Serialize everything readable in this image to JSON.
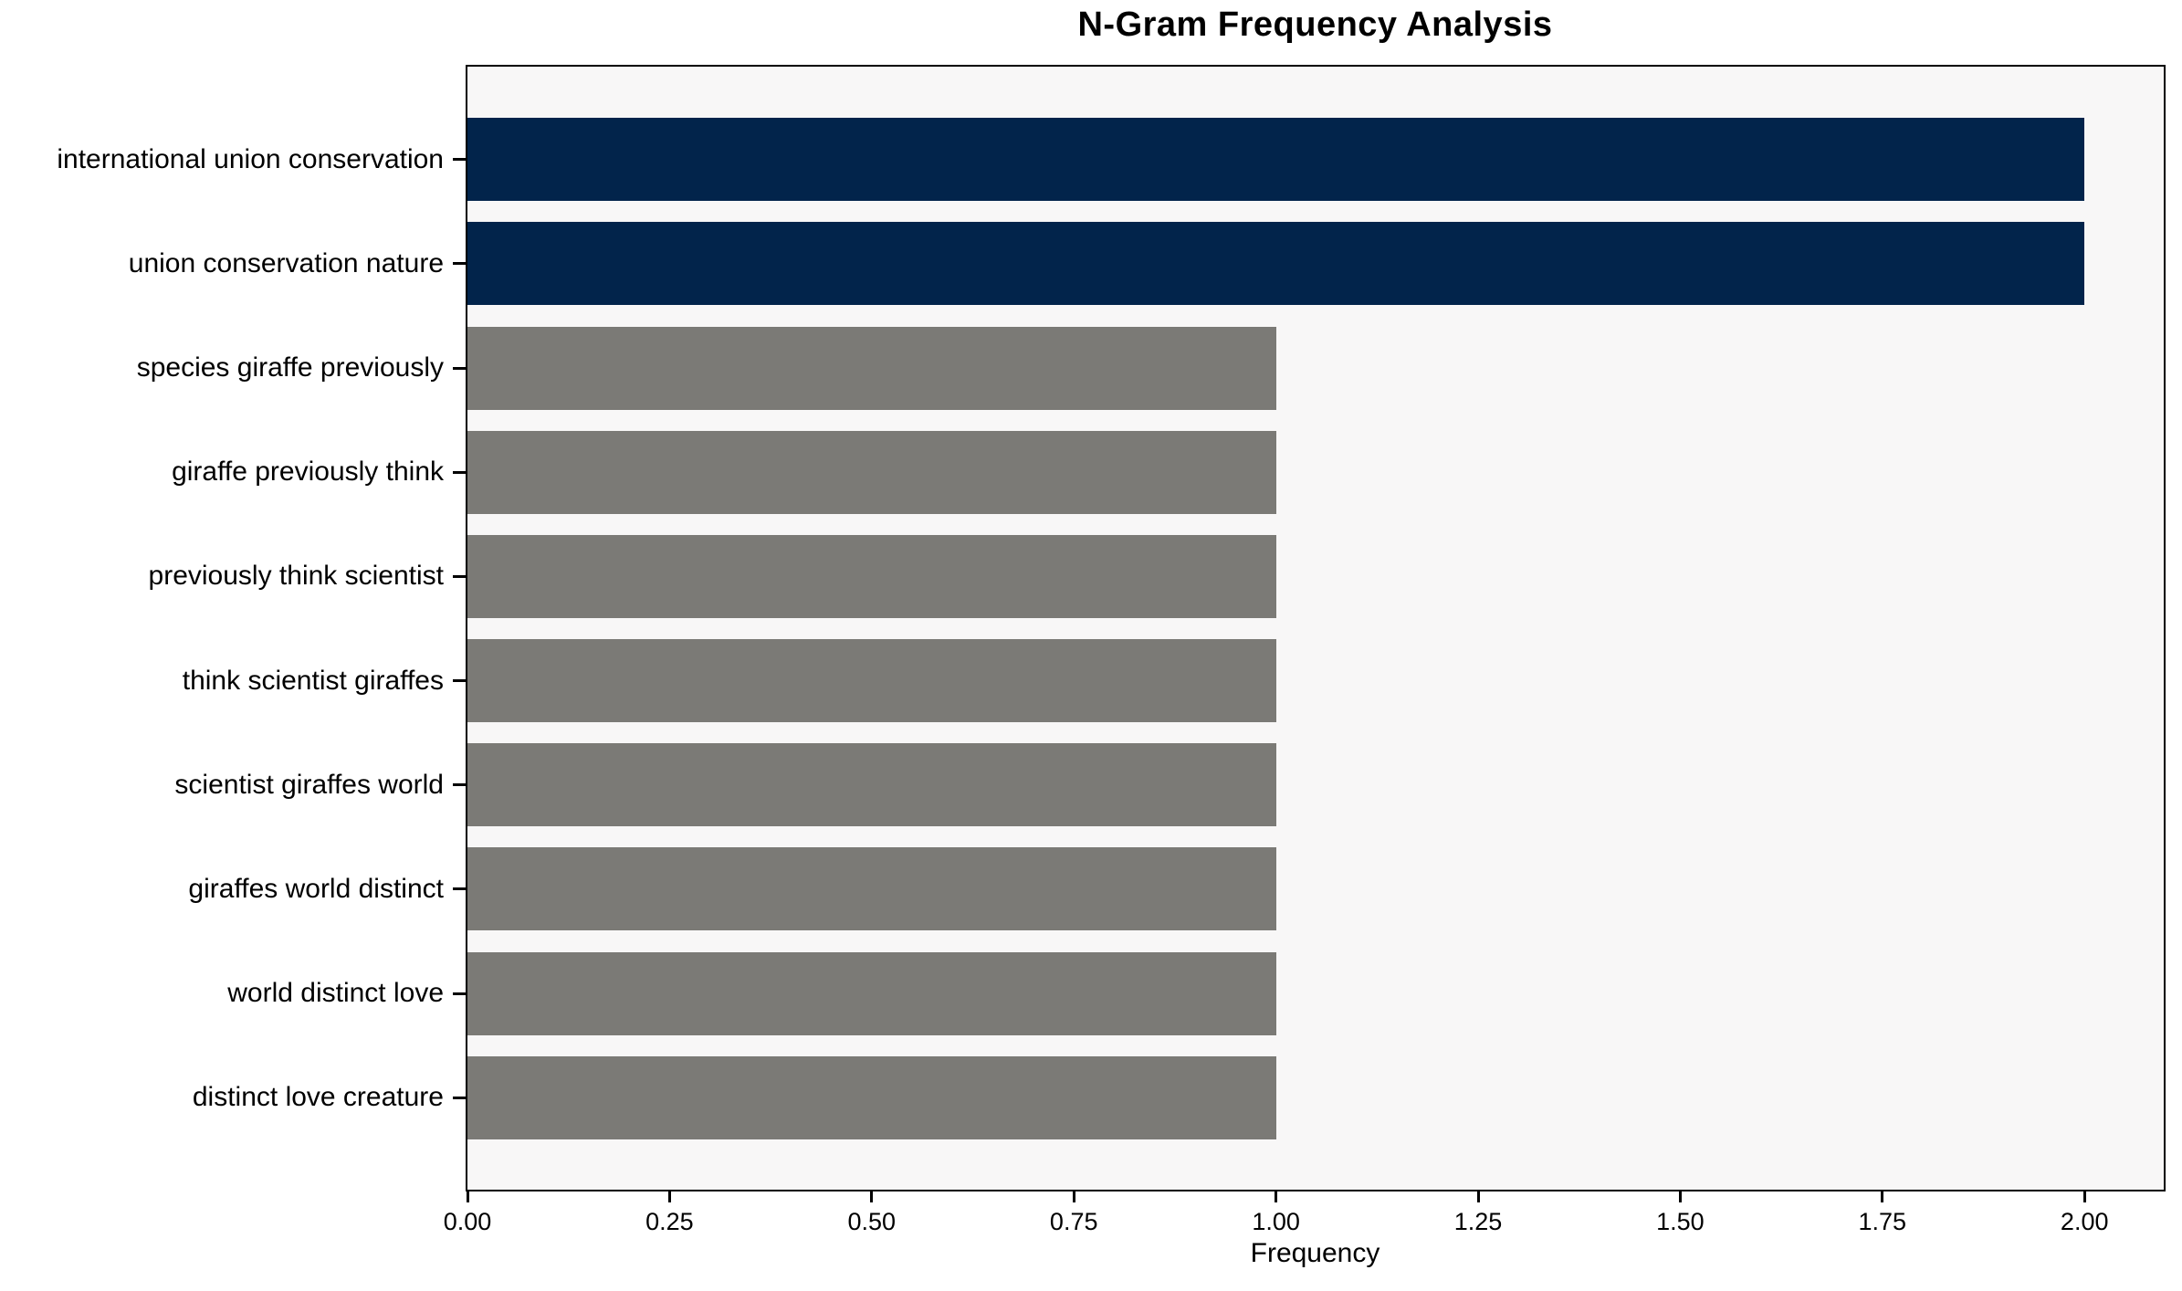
{
  "chart_data": {
    "type": "bar",
    "orientation": "horizontal",
    "title": "N-Gram Frequency Analysis",
    "xlabel": "Frequency",
    "ylabel": "",
    "categories": [
      "international union conservation",
      "union conservation nature",
      "species giraffe previously",
      "giraffe previously think",
      "previously think scientist",
      "think scientist giraffes",
      "scientist giraffes world",
      "giraffes world distinct",
      "world distinct love",
      "distinct love creature"
    ],
    "values": [
      2,
      2,
      1,
      1,
      1,
      1,
      1,
      1,
      1,
      1
    ],
    "bar_colors": [
      "#02244B",
      "#02244B",
      "#7B7A76",
      "#7B7A76",
      "#7B7A76",
      "#7B7A76",
      "#7B7A76",
      "#7B7A76",
      "#7B7A76",
      "#7B7A76"
    ],
    "xlim": [
      0,
      2.098
    ],
    "xticks": {
      "values": [
        0,
        0.25,
        0.5,
        0.75,
        1.0,
        1.25,
        1.5,
        1.75,
        2.0
      ],
      "labels": [
        "0.00",
        "0.25",
        "0.50",
        "0.75",
        "1.00",
        "1.25",
        "1.50",
        "1.75",
        "2.00"
      ]
    },
    "grid": false,
    "legend_position": "none",
    "colors": {
      "highlight": "#02244B",
      "default": "#7B7A76",
      "plot_background": "#F8F7F7",
      "figure_background": "#FFFFFF",
      "axis": "#000000",
      "text": "#000000"
    }
  }
}
